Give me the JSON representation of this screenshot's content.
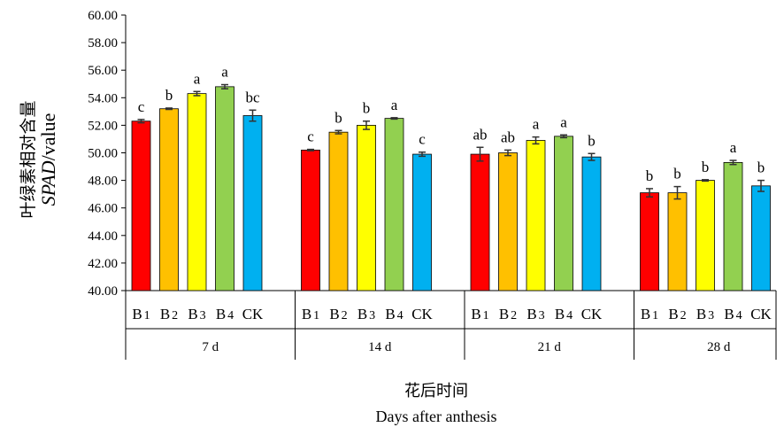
{
  "chart_data": {
    "type": "bar",
    "ylabel_cn": "叶绿素相对含量",
    "ylabel_en_italic": "SPAD",
    "ylabel_en_rest": "/value",
    "xlabel_cn": "花后时间",
    "xlabel_en": "Days after anthesis",
    "ylim": [
      40,
      60
    ],
    "yticks": [
      "40.00",
      "42.00",
      "44.00",
      "46.00",
      "48.00",
      "50.00",
      "52.00",
      "54.00",
      "56.00",
      "58.00",
      "60.00"
    ],
    "grid": false,
    "categories": [
      {
        "main": "B",
        "sub": "1"
      },
      {
        "main": "B",
        "sub": "2"
      },
      {
        "main": "B",
        "sub": "3"
      },
      {
        "main": "B",
        "sub": "4"
      },
      {
        "main": "CK",
        "sub": ""
      }
    ],
    "colors": [
      "#ff0000",
      "#ffc000",
      "#ffff00",
      "#92d050",
      "#00b0f0"
    ],
    "groups": [
      {
        "label": "7 d",
        "values": [
          52.3,
          53.2,
          54.3,
          54.8,
          52.7
        ],
        "errors": [
          0.12,
          0.05,
          0.15,
          0.15,
          0.4
        ],
        "letters": [
          "c",
          "b",
          "a",
          "a",
          "bc"
        ]
      },
      {
        "label": "14 d",
        "values": [
          50.2,
          51.5,
          52.0,
          52.5,
          49.9
        ],
        "errors": [
          0.05,
          0.12,
          0.3,
          0.05,
          0.15
        ],
        "letters": [
          "c",
          "b",
          "b",
          "a",
          "c"
        ]
      },
      {
        "label": "21 d",
        "values": [
          49.9,
          50.0,
          50.9,
          51.2,
          49.7
        ],
        "errors": [
          0.5,
          0.2,
          0.25,
          0.1,
          0.25
        ],
        "letters": [
          "ab",
          "ab",
          "a",
          "a",
          "b"
        ]
      },
      {
        "label": "28 d",
        "values": [
          47.1,
          47.1,
          48.0,
          49.3,
          47.6
        ],
        "errors": [
          0.3,
          0.45,
          0.05,
          0.15,
          0.4
        ],
        "letters": [
          "b",
          "b",
          "b",
          "a",
          "b"
        ]
      }
    ]
  }
}
